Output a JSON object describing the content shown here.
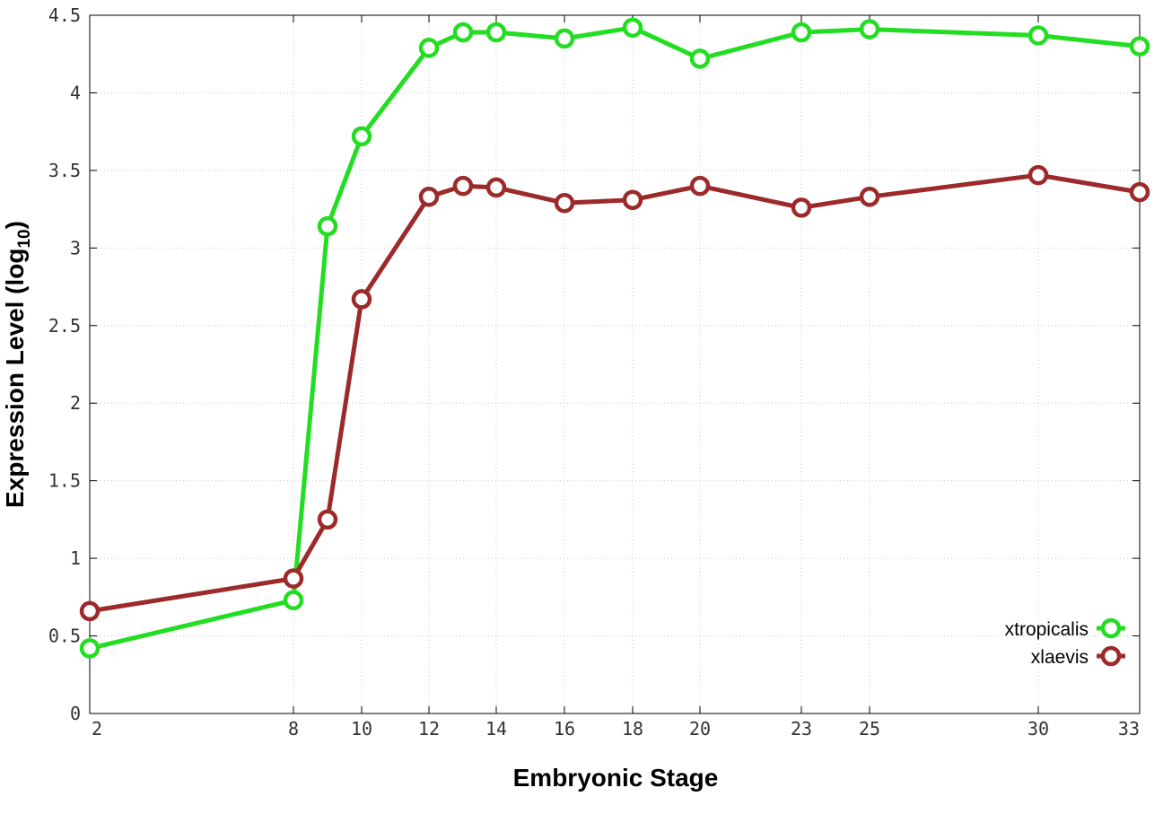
{
  "chart_data": {
    "type": "line",
    "xlabel": "Embryonic Stage",
    "ylabel": "Expression Level (log",
    "ylabel_sub": "10",
    "ylabel_close": ")",
    "x_ticks": [
      2,
      8,
      10,
      12,
      14,
      16,
      18,
      20,
      23,
      25,
      30,
      33
    ],
    "x_tick_labels": [
      "2",
      "8",
      "10",
      "12",
      "14",
      "16",
      "18",
      "20",
      "23",
      "25",
      "30",
      "33"
    ],
    "xlim": [
      2,
      33
    ],
    "x_scale": "nonlinear",
    "y_ticks": [
      0,
      0.5,
      1,
      1.5,
      2,
      2.5,
      3,
      3.5,
      4,
      4.5
    ],
    "y_tick_labels": [
      "0",
      "0.5",
      "1",
      "1.5",
      "2",
      "2.5",
      "3",
      "3.5",
      "4",
      "4.5"
    ],
    "ylim": [
      0,
      4.5
    ],
    "grid": true,
    "legend_position": "bottom-right",
    "x": [
      2,
      8,
      9,
      10,
      12,
      13,
      14,
      16,
      18,
      20,
      23,
      25,
      30,
      33
    ],
    "series": [
      {
        "name": "xtropicalis",
        "color": "#22dd22",
        "values": [
          0.42,
          0.73,
          3.14,
          3.72,
          4.29,
          4.39,
          4.39,
          4.35,
          4.42,
          4.22,
          4.39,
          4.41,
          4.37,
          4.3
        ]
      },
      {
        "name": "xlaevis",
        "color": "#9c2a2a",
        "values": [
          0.66,
          0.87,
          1.25,
          2.67,
          3.33,
          3.4,
          3.39,
          3.29,
          3.31,
          3.4,
          3.26,
          3.33,
          3.47,
          3.36
        ]
      }
    ]
  }
}
